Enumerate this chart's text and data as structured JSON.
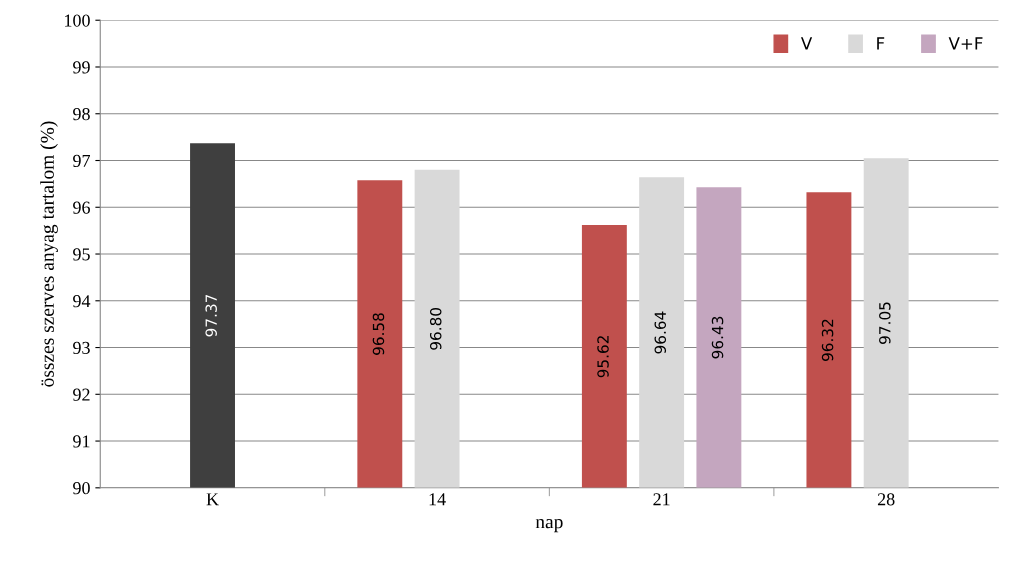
{
  "chart_data": {
    "type": "bar",
    "xlabel": "nap",
    "ylabel": "összes szerves anyag tartalom (%)",
    "categories": [
      "K",
      "14",
      "21",
      "28"
    ],
    "series": [
      {
        "color": "#3f3f3f",
        "values": [
          97.37,
          null,
          null,
          null
        ],
        "value_labels": [
          "97.37",
          null,
          null,
          null
        ]
      },
      {
        "name": "V",
        "color": "#c0504d",
        "values": [
          null,
          96.58,
          95.62,
          96.32
        ],
        "value_labels": [
          null,
          "96.58",
          "95.62",
          "96.32"
        ]
      },
      {
        "name": "F",
        "color": "#d9d9d9",
        "values": [
          null,
          96.8,
          96.64,
          97.05
        ],
        "value_labels": [
          null,
          "96.80",
          "96.64",
          "97.05"
        ]
      },
      {
        "name": "V+F",
        "color": "#c4a6bf",
        "values": [
          null,
          null,
          96.43,
          null
        ],
        "value_labels": [
          null,
          null,
          "96.43",
          null
        ]
      }
    ],
    "ylim": [
      90,
      100
    ],
    "yticks": [
      90,
      91,
      92,
      93,
      94,
      95,
      96,
      97,
      98,
      99,
      100
    ],
    "grid": "y",
    "legend": "top right"
  }
}
